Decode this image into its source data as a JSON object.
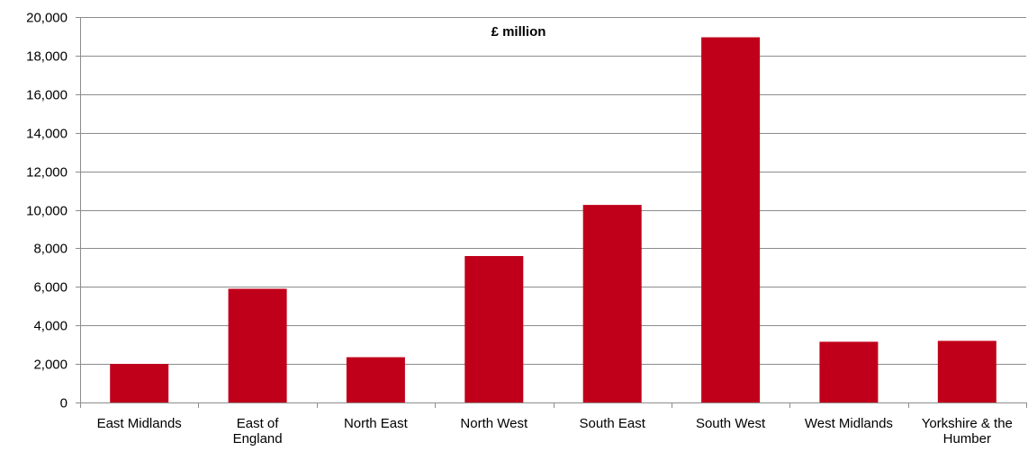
{
  "chart_data": {
    "type": "bar",
    "title": "£ million",
    "xlabel": "",
    "ylabel": "",
    "ylim": [
      0,
      20000
    ],
    "yticks": [
      0,
      2000,
      4000,
      6000,
      8000,
      10000,
      12000,
      14000,
      16000,
      18000,
      20000
    ],
    "ytick_labels": [
      "0",
      "2,000",
      "4,000",
      "6,000",
      "8,000",
      "10,000",
      "12,000",
      "14,000",
      "16,000",
      "18,000",
      "20,000"
    ],
    "grid": true,
    "legend": "none",
    "categories": [
      [
        "East Midlands"
      ],
      [
        "East of",
        "England"
      ],
      [
        "North East"
      ],
      [
        "North West"
      ],
      [
        "South East"
      ],
      [
        "South West"
      ],
      [
        "West Midlands"
      ],
      [
        "Yorkshire & the",
        "Humber"
      ]
    ],
    "values": [
      2000,
      5900,
      2350,
      7600,
      10250,
      18950,
      3150,
      3200
    ],
    "bar_color": "#c0001a",
    "gridline_color": "#8c8c8c"
  }
}
